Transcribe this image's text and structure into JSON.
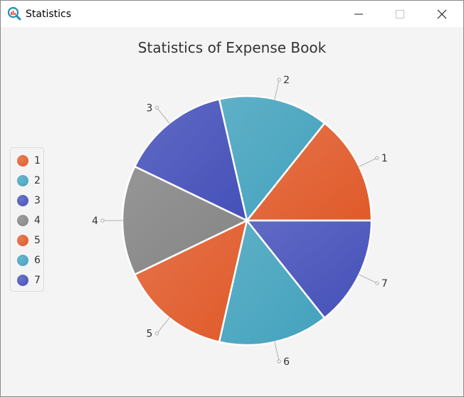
{
  "window": {
    "title": "Statistics",
    "icons": {
      "app": "chart-magnifier-icon",
      "minimize": "minimize-icon",
      "maximize": "maximize-icon",
      "close": "close-icon"
    }
  },
  "chart_data": {
    "type": "pie",
    "title": "Statistics of Expense Book",
    "categories": [
      "1",
      "2",
      "3",
      "4",
      "5",
      "6",
      "7"
    ],
    "values": [
      1,
      1,
      1,
      1,
      1,
      1,
      1
    ],
    "colors": [
      "#e05a2a",
      "#43a2bd",
      "#4550b9",
      "#848484",
      "#e05a2a",
      "#43a2bd",
      "#4550b9"
    ],
    "legend": "left",
    "start_angle_deg": 0,
    "direction": "counterclockwise",
    "slice_labels": true
  }
}
